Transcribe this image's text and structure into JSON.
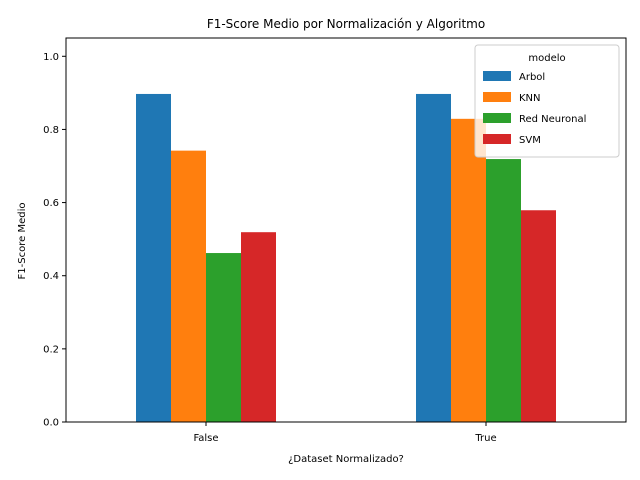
{
  "chart_data": {
    "type": "bar",
    "title": "F1-Score Medio por Normalización y Algoritmo",
    "xlabel": "¿Dataset Normalizado?",
    "ylabel": "F1-Score Medio",
    "categories": [
      "False",
      "True"
    ],
    "series": [
      {
        "name": "Arbol",
        "values": [
          0.897,
          0.897
        ],
        "color": "#1f77b4"
      },
      {
        "name": "KNN",
        "values": [
          0.742,
          0.829
        ],
        "color": "#ff7f0e"
      },
      {
        "name": "Red Neuronal",
        "values": [
          0.462,
          0.719
        ],
        "color": "#2ca02c"
      },
      {
        "name": "SVM",
        "values": [
          0.519,
          0.579
        ],
        "color": "#d62728"
      }
    ],
    "ylim": [
      0,
      1.05
    ],
    "yticks": [
      "0.0",
      "0.2",
      "0.4",
      "0.6",
      "0.8",
      "1.0"
    ],
    "grid": false,
    "legend": {
      "title": "modelo",
      "placement": "top-right"
    }
  }
}
